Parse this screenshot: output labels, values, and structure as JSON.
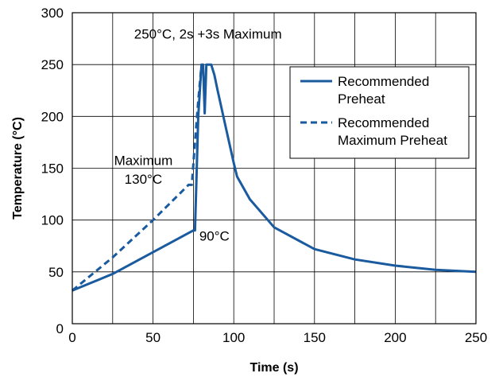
{
  "chart_data": {
    "type": "line",
    "title": "",
    "xlabel": "Time (s)",
    "ylabel": "Temperature (°C)",
    "xlim": [
      0,
      250
    ],
    "ylim": [
      0,
      300
    ],
    "xticks": [
      0,
      50,
      100,
      150,
      200,
      250
    ],
    "yticks": [
      0,
      50,
      100,
      150,
      200,
      250,
      300
    ],
    "x_tick_labels": [
      "0",
      "50",
      "100",
      "150",
      "200",
      "250"
    ],
    "y_tick_labels": [
      "0",
      "50",
      "100",
      "150",
      "200",
      "250",
      "300"
    ],
    "grid": true,
    "legend_position": "top-right",
    "line_color": "#1a5a9e",
    "series": [
      {
        "name": "Recommended Preheat",
        "legend_lines": [
          "Recommended",
          "Preheat"
        ],
        "style": "solid",
        "x": [
          0,
          25,
          50,
          75,
          76,
          78,
          80,
          81,
          82,
          83,
          84,
          86,
          88,
          90,
          95,
          100,
          102,
          110,
          125,
          150,
          175,
          200,
          225,
          250
        ],
        "y": [
          32,
          48,
          69,
          90,
          90,
          200,
          250,
          250,
          203,
          250,
          250,
          250,
          240,
          225,
          190,
          155,
          142,
          120,
          93,
          72,
          62,
          56,
          52,
          50
        ]
      },
      {
        "name": "Recommended Maximum Preheat",
        "legend_lines": [
          "Recommended",
          "Maximum Preheat"
        ],
        "style": "dashed",
        "x": [
          0,
          25,
          50,
          72,
          74,
          76,
          78,
          80
        ],
        "y": [
          32,
          64,
          100,
          134,
          134,
          175,
          215,
          250
        ]
      }
    ],
    "annotations": [
      {
        "text": "250°C, 2s +3s Maximum",
        "x": 84,
        "y": 275
      },
      {
        "text": "Maximum",
        "x": 44,
        "y": 153
      },
      {
        "text": "130°C",
        "x": 44,
        "y": 135
      },
      {
        "text": "90°C",
        "x": 88,
        "y": 80
      }
    ]
  }
}
